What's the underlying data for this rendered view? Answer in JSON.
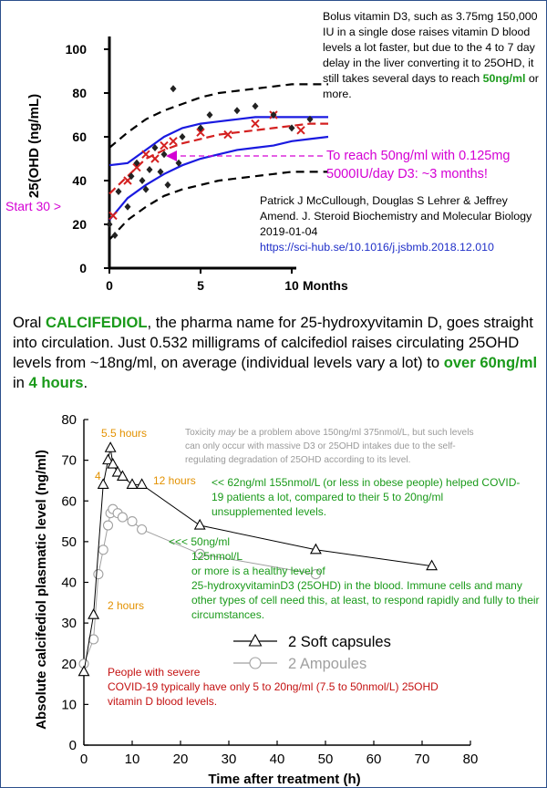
{
  "colors": {
    "frame": "#2c4f8c",
    "top_black": "#000000",
    "top_blue": "#1a1ae0",
    "top_red": "#d42020",
    "magenta": "#d400d4",
    "green": "#1a9a1a",
    "orange": "#e39100",
    "gray_text": "#9a9a9a",
    "dark_red": "#c41212",
    "soft_capsules": "#000000",
    "ampoules": "#a0a0a0"
  },
  "top": {
    "ylabel": "25(OHD (ng/mL)",
    "xlabel_unit": "Months",
    "note": {
      "part1": "Bolus vitamin D3, such as 3.75mg 150,000 IU in a single dose raises vitamin D blood levels a lot faster, but due to the 4 to 7 day delay in the liver converting it to 25OHD, it still takes several days to reach ",
      "highlight": "50ng/ml",
      "part2": " or more."
    },
    "reach_line1": "To reach 50ng/ml with 0.125mg",
    "reach_line2": "5000IU/day D3: ~3 months!",
    "start_label": "Start 30 >",
    "citation": "Patrick J McCullough, Douglas S Lehrer & Jeffrey Amend. J. Steroid Biochemistry and Molecular Biology 2019-01-04",
    "link": "https://sci-hub.se/10.1016/j.jsbmb.2018.12.010"
  },
  "middle": {
    "p1": "Oral ",
    "highlight1": "CALCIFEDIOL",
    "p2": ", the pharma name for 25-hydroxyvitamin D, goes straight into circulation.  Just 0.532 milligrams of calcifediol raises circulating 25OHD levels from ~18ng/ml, on average (individual levels vary a lot) to ",
    "highlight2": "over 60ng/ml",
    "p3": " in ",
    "highlight3": "4 hours",
    "p4": "."
  },
  "bottom": {
    "toxicity_part1": "Toxicity ",
    "toxicity_em": "may",
    "toxicity_part2": " be a problem above 150ng/ml 375nmol/L, but such levels can only occur with massive D3 or 25OHD intakes due to the self-regulating degradation of 25OHD according to its level.",
    "covid_note": "<< 62ng/ml 155nmol/L (or less in obese people) helped COVID-19 patients a lot, compared to their 5 to 20ng/ml unsupplemented levels.",
    "healthy_line1": "<<< 50ng/ml",
    "healthy_line2": "125nmol/L",
    "healthy_line3": "or more is a healthy level of",
    "healthy_line4": "25-hydroxyvitaminD3 (25OHD) in the blood.  Immune cells and many other types of cell need this, at least, to respond rapidly and fully to their circumstances.",
    "severe_line1": "People with severe",
    "severe_line2": "COVID-19 typically have only 5 to 20ng/ml (7.5 to 50nmol/L) 25OHD vitamin D blood levels.",
    "label_4": "4",
    "label_55": "5.5 hours",
    "label_12": "12 hours",
    "label_2": "2 hours"
  },
  "chart_data": [
    {
      "type": "scatter",
      "title": "",
      "xlabel": "Months",
      "ylabel": "25(OHD (ng/mL)",
      "xlim": [
        0,
        12
      ],
      "ylim": [
        0,
        110
      ],
      "xticks": [
        0,
        5,
        10
      ],
      "yticks": [
        0,
        20,
        40,
        60,
        80,
        100
      ],
      "series": [
        {
          "style": "black-dashed",
          "x": [
            0,
            1,
            2,
            3,
            4,
            5,
            6,
            7,
            8,
            9,
            10,
            11,
            12
          ],
          "y": [
            55,
            62,
            68,
            72,
            75,
            78,
            80,
            81,
            82,
            83,
            84,
            84,
            84
          ]
        },
        {
          "style": "blue-solid",
          "x": [
            0,
            1,
            2,
            3,
            4,
            5,
            6,
            7,
            8,
            9,
            10,
            11,
            12
          ],
          "y": [
            47,
            48,
            54,
            60,
            64,
            66,
            67,
            68,
            69,
            69,
            69,
            69,
            69
          ]
        },
        {
          "style": "red-dashed",
          "x": [
            0,
            1,
            2,
            3,
            4,
            5,
            6,
            7,
            8,
            9,
            10,
            11,
            12
          ],
          "y": [
            34,
            42,
            50,
            54,
            57,
            59,
            61,
            62,
            63,
            64,
            65,
            66,
            66
          ]
        },
        {
          "style": "blue-solid",
          "x": [
            0,
            1,
            2,
            3,
            4,
            5,
            6,
            7,
            8,
            9,
            10,
            11,
            12
          ],
          "y": [
            22,
            32,
            38,
            43,
            47,
            50,
            52,
            54,
            55,
            56,
            58,
            59,
            60
          ]
        },
        {
          "style": "black-dashed",
          "x": [
            0,
            1,
            2,
            3,
            4,
            5,
            6,
            7,
            8,
            9,
            10,
            11,
            12
          ],
          "y": [
            13,
            22,
            28,
            33,
            36,
            38,
            40,
            41,
            42,
            43,
            44,
            44,
            44
          ]
        },
        {
          "style": "red-x",
          "x": [
            0.2,
            1,
            1.5,
            2,
            2.5,
            3,
            3.5,
            5,
            6.5,
            8,
            9,
            10.5
          ],
          "y": [
            24,
            40,
            46,
            52,
            50,
            56,
            58,
            62,
            61,
            66,
            70,
            63
          ]
        },
        {
          "style": "black-diamond",
          "x": [
            0,
            0.3,
            0.5,
            1,
            1.2,
            1.5,
            1.8,
            2,
            2.2,
            2.5,
            2.8,
            3,
            3.2,
            3.5,
            3.8,
            4,
            5,
            5.5,
            7,
            8,
            9,
            10,
            11
          ],
          "y": [
            20,
            15,
            35,
            28,
            42,
            48,
            40,
            36,
            45,
            55,
            44,
            52,
            38,
            82,
            48,
            60,
            64,
            70,
            72,
            74,
            70,
            64,
            68
          ]
        }
      ]
    },
    {
      "type": "line",
      "title": "",
      "xlabel": "Time after treatment (h)",
      "ylabel": "Absolute calcifediol plasmatic level (ng/ml)",
      "xlim": [
        0,
        80
      ],
      "ylim": [
        0,
        80
      ],
      "xticks": [
        0,
        10,
        20,
        30,
        40,
        50,
        60,
        70,
        80
      ],
      "yticks": [
        0,
        10,
        20,
        30,
        40,
        50,
        60,
        70,
        80
      ],
      "legend_position": "center-right",
      "series": [
        {
          "name": "2 Soft capsules",
          "marker": "triangle",
          "x": [
            0,
            2,
            4,
            5,
            5.5,
            6,
            7,
            8,
            10,
            12,
            24,
            48,
            72
          ],
          "y": [
            18,
            32,
            64,
            70,
            73,
            69,
            67,
            66,
            64,
            64,
            54,
            48,
            44
          ]
        },
        {
          "name": "2 Ampoules",
          "marker": "circle",
          "x": [
            0,
            2,
            3,
            4,
            5,
            5.5,
            6,
            7,
            8,
            10,
            12,
            24,
            48
          ],
          "y": [
            20,
            26,
            42,
            48,
            54,
            57,
            58,
            57,
            56,
            55,
            53,
            47,
            42
          ]
        }
      ]
    }
  ]
}
